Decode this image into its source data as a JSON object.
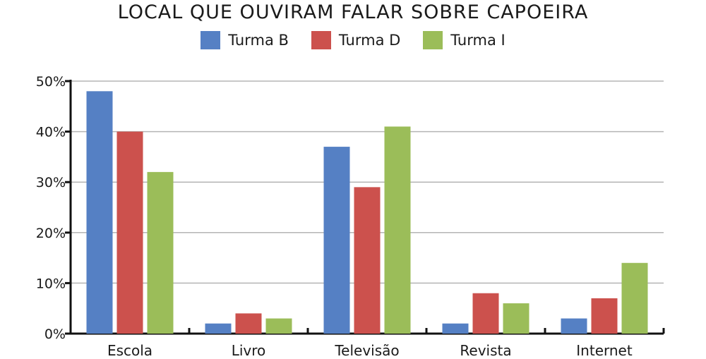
{
  "chart_data": {
    "type": "bar",
    "title": "LOCAL QUE OUVIRAM FALAR SOBRE CAPOEIRA",
    "categories": [
      "Escola",
      "Livro",
      "Televisão",
      "Revista",
      "Internet"
    ],
    "series": [
      {
        "name": "Turma B",
        "color": "#5580c4",
        "values": [
          48,
          2,
          37,
          2,
          3
        ]
      },
      {
        "name": "Turma D",
        "color": "#cc514d",
        "values": [
          40,
          4,
          29,
          8,
          7
        ]
      },
      {
        "name": "Turma I",
        "color": "#9bbd59",
        "values": [
          32,
          3,
          41,
          6,
          14
        ]
      }
    ],
    "yticks": [
      "0%",
      "10%",
      "20%",
      "30%",
      "40%",
      "50%"
    ],
    "ylim": [
      0,
      50
    ],
    "xlabel": "",
    "ylabel": "",
    "grid": true,
    "legend": "top-center"
  }
}
